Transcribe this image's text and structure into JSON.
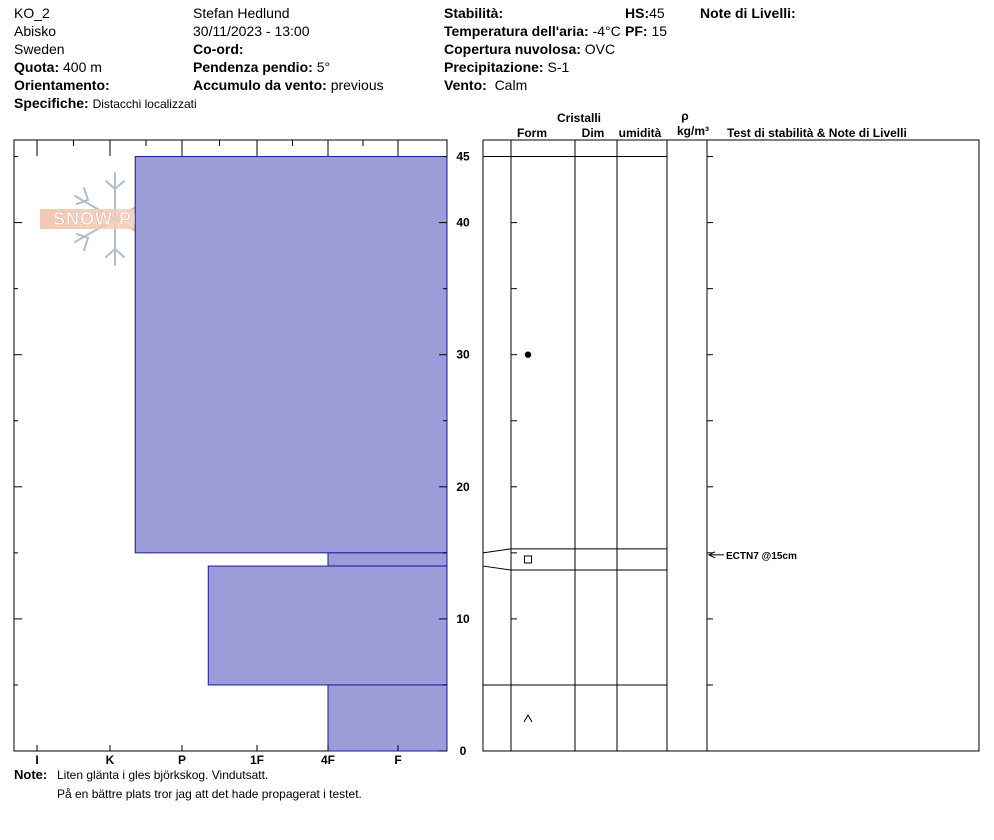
{
  "header": {
    "profile_name": "KO_2",
    "location": "Abisko",
    "country": "Sweden",
    "observer": "Stefan Hedlund",
    "datetime": "30/11/2023 - 13:00",
    "elevation_label": "Quota:",
    "elevation_value": "400 m",
    "aspect_label": "Orientamento:",
    "aspect_value": "",
    "coord_label": "Co-ord:",
    "coord_value": "",
    "slope_label": "Pendenza pendio:",
    "slope_value": "5°",
    "wind_loading_label": "Accumulo da vento:",
    "wind_loading_value": "previous",
    "specifics_label": "Specifiche:",
    "specifics_value": "Distacchi localizzati",
    "stability_label": "Stabilità:",
    "stability_value": "",
    "air_temp_label": "Temperatura dell'aria:",
    "air_temp_value": "-4°C",
    "cloud_label": "Copertura nuvolosa:",
    "cloud_value": "OVC",
    "precip_label": "Precipitazione:",
    "precip_value": "S-1",
    "wind_label": "Vento:",
    "wind_value": "Calm",
    "hs_label": "HS:",
    "hs_value": "45",
    "pf_label": "PF:",
    "pf_value": "15",
    "layer_notes_label": "Note di Livelli:"
  },
  "columns": {
    "crystals": "Cristalli",
    "form": "Form",
    "size": "Dim",
    "moisture": "umidità",
    "rho": "ρ",
    "density_unit": "kg/m³",
    "tests": "Test di stabilità & Note di Livelli"
  },
  "logo_text": "SNOW PILOT",
  "notes": {
    "label": "Note:",
    "line1": "Liten glänta i gles björkskog. Vindutsatt.",
    "line2": "På en bättre plats tror jag att det hade propagerat i testet."
  },
  "colors": {
    "hardness_fill": "#9c9cd8",
    "hardness_stroke": "#1a1a99"
  },
  "chart_data": {
    "type": "bar",
    "y_unit": "cm",
    "ylim": [
      0,
      45
    ],
    "y_ticks": [
      0,
      10,
      20,
      30,
      40,
      45
    ],
    "hardness_scale": [
      "I",
      "K",
      "P",
      "1F",
      "4F",
      "F"
    ],
    "layers": [
      {
        "top": 45,
        "bottom": 15,
        "hardness_index": 1.35,
        "grain_form": "rounded"
      },
      {
        "top": 15,
        "bottom": 14,
        "hardness_index": 4,
        "grain_form": "square"
      },
      {
        "top": 14,
        "bottom": 5,
        "hardness_index": 2.35
      },
      {
        "top": 5,
        "bottom": 0,
        "hardness_index": 4,
        "grain_form": "caret"
      }
    ],
    "grain_markers": [
      {
        "depth": 30,
        "symbol": "dot"
      },
      {
        "depth": 14.5,
        "symbol": "square"
      },
      {
        "depth": 2.5,
        "symbol": "caret"
      }
    ],
    "stability_tests": [
      {
        "depth": 15,
        "label": "ECTN7 @15cm"
      }
    ]
  }
}
